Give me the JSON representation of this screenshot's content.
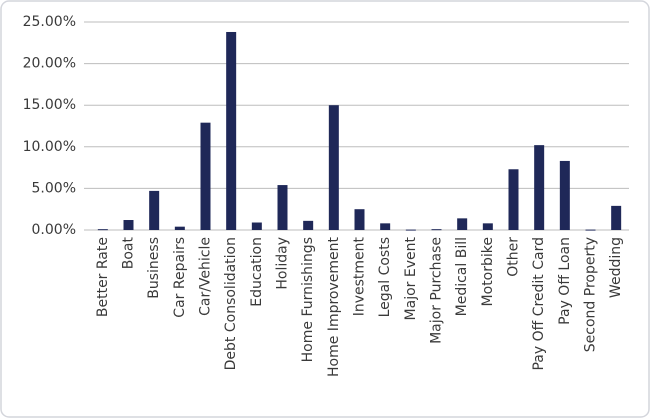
{
  "chart_data": {
    "type": "bar",
    "categories": [
      "Better Rate",
      "Boat",
      "Business",
      "Car Repairs",
      "Car/Vehicle",
      "Debt Consolidation",
      "Education",
      "Holiday",
      "Home Furnishings",
      "Home Improvement",
      "Investment",
      "Legal Costs",
      "Major Event",
      "Major Purchase",
      "Medical Bill",
      "Motorbike",
      "Other",
      "Pay Off Credit Card",
      "Pay Off Loan",
      "Second Property",
      "Wedding"
    ],
    "values": [
      0.1,
      1.2,
      4.7,
      0.4,
      12.9,
      23.8,
      0.9,
      5.4,
      1.1,
      15.0,
      2.5,
      0.8,
      0.05,
      0.1,
      1.4,
      0.8,
      7.3,
      10.2,
      8.3,
      0.05,
      2.9
    ],
    "color": "#1f2858",
    "ylim": [
      0,
      25
    ],
    "yticks": [
      {
        "value": 0,
        "label": "0.00%"
      },
      {
        "value": 5,
        "label": "5.00%"
      },
      {
        "value": 10,
        "label": "10.00%"
      },
      {
        "value": 15,
        "label": "15.00%"
      },
      {
        "value": 20,
        "label": "20.00%"
      },
      {
        "value": 25,
        "label": "25.00%"
      }
    ],
    "grid": true
  }
}
